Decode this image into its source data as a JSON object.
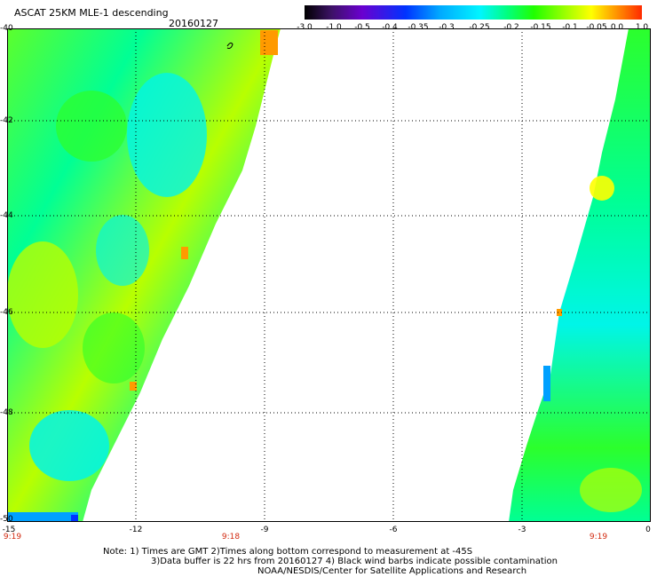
{
  "header": {
    "title": "ASCAT 25KM MLE-1 descending",
    "date": "20160127"
  },
  "colorbar": {
    "labels": [
      "-3.0",
      "-1.0",
      "-0.5",
      "-0.4",
      "-0.35",
      "-0.3",
      "-0.25",
      "-0.2",
      "-0.15",
      "-0.1",
      "-0.05",
      "0.0",
      "1.0"
    ]
  },
  "axes": {
    "y_labels": [
      "-40",
      "-42",
      "-44",
      "-46",
      "-48",
      "-50"
    ],
    "x_labels": [
      "-15",
      "-12",
      "-9",
      "-6",
      "-3",
      "0"
    ]
  },
  "times": {
    "left": "9:19",
    "middle": "9:18",
    "right": "9:19"
  },
  "notes": {
    "line1": "Note: 1) Times are GMT 2)Times along bottom correspond to measurement at -45S",
    "line2": "3)Data buffer is 22 hrs from 20160127 4) Black wind barbs indicate possible contamination",
    "line3": "NOAA/NESDIS/Center for Satellite Applications and Research"
  },
  "map": {
    "longitude_range": [
      -15,
      0
    ],
    "latitude_range": [
      -50,
      -40
    ],
    "grid_spacing_lon": 3,
    "grid_spacing_lat": 2,
    "west_swath_east_edge_lon": [
      -9.3,
      -13.8
    ],
    "east_swath_west_edge_lon": [
      -0.6,
      -3.3
    ],
    "dominant_value_range": [
      -0.3,
      -0.1
    ],
    "colors": {
      "cyan": "#00f5e8",
      "green_cyan": "#00ff95",
      "green": "#2cff2c",
      "yellow_green": "#b8ff00",
      "yellow": "#ffff00",
      "orange": "#ff9a00",
      "blue": "#00a0ff",
      "time_text": "#d22a10"
    }
  }
}
